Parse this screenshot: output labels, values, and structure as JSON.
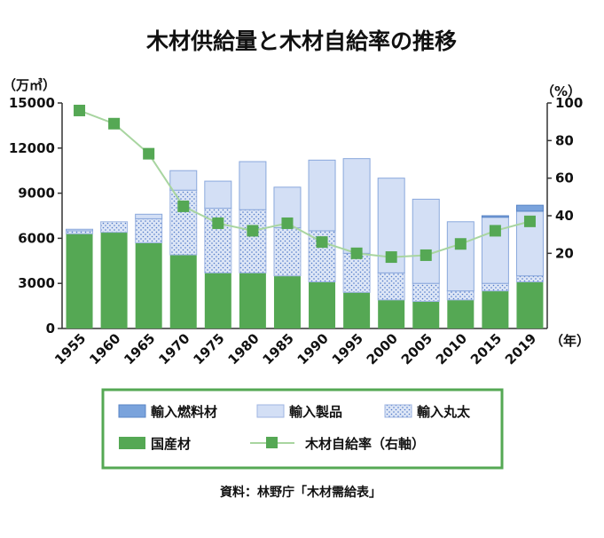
{
  "chart_data": {
    "type": "bar",
    "title": "木材供給量と木材自給率の推移",
    "y_unit": "（万㎥）",
    "y2_unit": "（%）",
    "x_unit": "（年）",
    "categories": [
      "1955",
      "1960",
      "1965",
      "1970",
      "1975",
      "1980",
      "1985",
      "1990",
      "1995",
      "2000",
      "2005",
      "2010",
      "2015",
      "2019"
    ],
    "y_ticks": [
      "0",
      "3000",
      "6000",
      "9000",
      "12000",
      "15000"
    ],
    "y2_ticks": [
      "20",
      "40",
      "60",
      "80",
      "100"
    ],
    "ylim": [
      0,
      15000
    ],
    "y2lim": [
      -20,
      100
    ],
    "stacked": true,
    "series": [
      {
        "name": "国産材",
        "values": [
          6300,
          6400,
          5700,
          4900,
          3700,
          3700,
          3500,
          3100,
          2400,
          1900,
          1800,
          1900,
          2500,
          3100
        ],
        "color": "#55a854"
      },
      {
        "name": "輸入丸太",
        "values": [
          200,
          700,
          1600,
          4300,
          4300,
          4200,
          3200,
          3400,
          2600,
          1800,
          1200,
          600,
          500,
          400
        ],
        "color": "#dde6f6"
      },
      {
        "name": "輸入製品",
        "values": [
          100,
          0,
          300,
          1300,
          1800,
          3200,
          2700,
          4700,
          6300,
          6300,
          5600,
          4600,
          4400,
          4300
        ],
        "color": "#d3dff5"
      },
      {
        "name": "輸入燃料材",
        "values": [
          0,
          0,
          0,
          0,
          0,
          0,
          0,
          0,
          0,
          0,
          0,
          0,
          100,
          400
        ],
        "color": "#7aa3dc"
      }
    ],
    "line_series": {
      "name": "木材自給率（右軸）",
      "axis": "right",
      "values": [
        96,
        89,
        73,
        45,
        36,
        32,
        36,
        26,
        20,
        18,
        19,
        25,
        32,
        37
      ],
      "color": "#55a854"
    },
    "legend": {
      "placement": "bottom",
      "items": [
        "輸入燃料材",
        "輸入製品",
        "輸入丸太",
        "国産材",
        "木材自給率（右軸）"
      ]
    },
    "source": "資料：林野庁「木材需給表」"
  }
}
